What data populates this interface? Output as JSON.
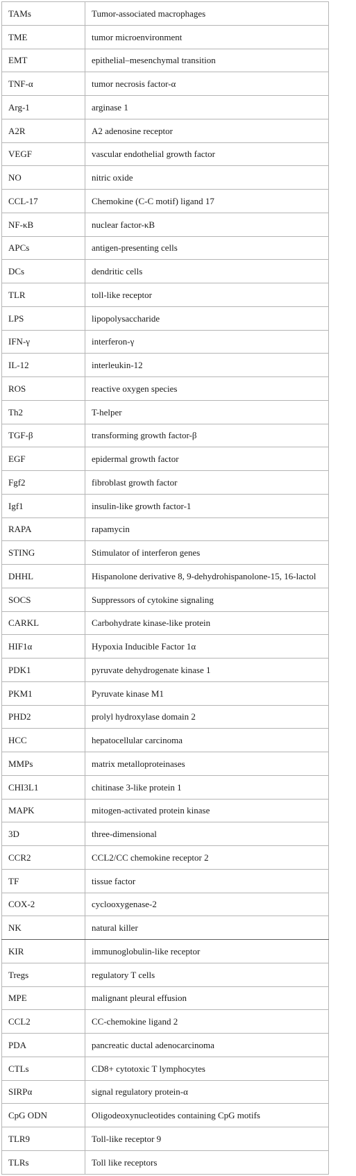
{
  "table": {
    "rows": [
      [
        "TAMs",
        "Tumor-associated macrophages"
      ],
      [
        "TME",
        "tumor microenvironment"
      ],
      [
        "EMT",
        "epithelial–mesenchymal transition"
      ],
      [
        "TNF-α",
        "tumor necrosis factor-α"
      ],
      [
        "Arg-1",
        "arginase 1"
      ],
      [
        "A2R",
        "A2 adenosine receptor"
      ],
      [
        "VEGF",
        "vascular endothelial growth factor"
      ],
      [
        "NO",
        "nitric oxide"
      ],
      [
        "CCL-17",
        "Chemokine (C-C motif) ligand 17"
      ],
      [
        "NF-κB",
        "nuclear factor-κB"
      ],
      [
        "APCs",
        "antigen-presenting cells"
      ],
      [
        "DCs",
        "dendritic cells"
      ],
      [
        "TLR",
        "toll-like receptor"
      ],
      [
        "LPS",
        "lipopolysaccharide"
      ],
      [
        "IFN-γ",
        "interferon-γ"
      ],
      [
        "IL-12",
        "interleukin-12"
      ],
      [
        "ROS",
        "reactive oxygen species"
      ],
      [
        "Th2",
        "T-helper"
      ],
      [
        "TGF-β",
        "transforming growth factor-β"
      ],
      [
        "EGF",
        "epidermal growth factor"
      ],
      [
        "Fgf2",
        "fibroblast growth factor"
      ],
      [
        "Igf1",
        "insulin-like growth factor-1"
      ],
      [
        "RAPA",
        "rapamycin"
      ],
      [
        "STING",
        "Stimulator of interferon genes"
      ],
      [
        "DHHL",
        "Hispanolone derivative 8, 9-dehydrohispanolone-15, 16-lactol"
      ],
      [
        "SOCS",
        "Suppressors of cytokine signaling"
      ],
      [
        "CARKL",
        "Carbohydrate kinase-like protein"
      ],
      [
        "HIF1α",
        "Hypoxia Inducible Factor 1α"
      ],
      [
        "PDK1",
        "pyruvate dehydrogenate kinase 1"
      ],
      [
        "PKM1",
        "Pyruvate kinase M1"
      ],
      [
        "PHD2",
        "prolyl hydroxylase domain 2"
      ],
      [
        "HCC",
        "hepatocellular carcinoma"
      ],
      [
        "MMPs",
        "matrix metalloproteinases"
      ],
      [
        "CHI3L1",
        "chitinase 3-like protein 1"
      ],
      [
        "MAPK",
        "mitogen-activated protein kinase"
      ],
      [
        "3D",
        "three-dimensional"
      ],
      [
        "CCR2",
        "CCL2/CC chemokine receptor 2"
      ],
      [
        "TF",
        "tissue factor"
      ],
      [
        "COX-2",
        "cyclooxygenase-2"
      ],
      [
        "NK",
        "natural killer"
      ],
      [
        "KIR",
        "immunoglobulin-like receptor"
      ],
      [
        "Tregs",
        "regulatory T cells"
      ],
      [
        "MPE",
        "malignant pleural effusion"
      ],
      [
        "CCL2",
        "CC-chemokine ligand 2"
      ],
      [
        "PDA",
        "pancreatic ductal adenocarcinoma"
      ],
      [
        "CTLs",
        "CD8+ cytotoxic T lymphocytes"
      ],
      [
        "SIRPα",
        "signal regulatory protein-α"
      ],
      [
        "CpG ODN",
        "Oligodeoxynucleotides containing CpG motifs"
      ],
      [
        "TLR9",
        "Toll-like receptor 9"
      ],
      [
        "TLRs",
        "Toll like receptors"
      ]
    ]
  }
}
